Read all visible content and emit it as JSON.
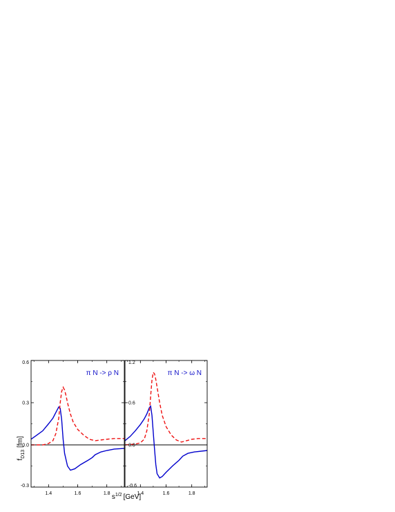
{
  "figure": {
    "ylabel_main": "f",
    "ylabel_sub": "D13",
    "ylabel_unit": "[fm]",
    "xlabel_main": "s",
    "xlabel_sup": "1/2",
    "xlabel_unit": "[GeV]"
  },
  "colors": {
    "solid": "#0000cc",
    "dashed": "#ee1111",
    "axis": "#000000",
    "zero_line": "#000000",
    "label_text": "#1010c8"
  },
  "chart_data": [
    {
      "type": "line",
      "panel": "left",
      "annotation": "π N -> ρ N",
      "xlim": [
        1.28,
        1.92
      ],
      "ylim": [
        -0.3,
        0.6
      ],
      "x_ticks": [
        1.4,
        1.6,
        1.8
      ],
      "x_tick_labels": [
        "1.4",
        "1.6",
        "1.8"
      ],
      "y_ticks": [
        -0.3,
        0.0,
        0.3,
        0.6
      ],
      "y_tick_labels": [
        "-0.3",
        "0.0",
        "0.3",
        "0.6"
      ],
      "zero_line": true,
      "grid": false,
      "series": [
        {
          "style": "solid",
          "x": [
            1.28,
            1.32,
            1.36,
            1.4,
            1.43,
            1.45,
            1.47,
            1.48,
            1.49,
            1.5,
            1.51,
            1.53,
            1.55,
            1.58,
            1.62,
            1.67,
            1.7,
            1.72,
            1.76,
            1.8,
            1.85,
            1.92
          ],
          "y": [
            0.04,
            0.07,
            0.1,
            0.15,
            0.19,
            0.23,
            0.27,
            0.26,
            0.18,
            0.04,
            -0.06,
            -0.15,
            -0.18,
            -0.17,
            -0.14,
            -0.11,
            -0.09,
            -0.07,
            -0.05,
            -0.04,
            -0.03,
            -0.025
          ]
        },
        {
          "style": "dashed",
          "x": [
            1.28,
            1.36,
            1.4,
            1.43,
            1.45,
            1.47,
            1.48,
            1.49,
            1.5,
            1.51,
            1.52,
            1.53,
            1.55,
            1.57,
            1.6,
            1.64,
            1.68,
            1.72,
            1.76,
            1.8,
            1.85,
            1.92
          ],
          "y": [
            0.0,
            0.0,
            0.01,
            0.03,
            0.08,
            0.19,
            0.3,
            0.38,
            0.41,
            0.39,
            0.35,
            0.3,
            0.22,
            0.16,
            0.11,
            0.07,
            0.04,
            0.03,
            0.035,
            0.04,
            0.045,
            0.045
          ]
        }
      ]
    },
    {
      "type": "line",
      "panel": "right",
      "annotation": "π N -> ω N",
      "xlim": [
        1.28,
        1.92
      ],
      "ylim": [
        -0.6,
        1.2
      ],
      "x_ticks": [
        1.4,
        1.6,
        1.8
      ],
      "x_tick_labels": [
        "1.4",
        "1.6",
        "1.8"
      ],
      "y_ticks": [
        -0.6,
        0.0,
        0.6,
        1.2
      ],
      "y_tick_labels": [
        "-0.6",
        "0.0",
        "0.6",
        "1.2"
      ],
      "zero_line": true,
      "grid": false,
      "series": [
        {
          "style": "solid",
          "x": [
            1.28,
            1.32,
            1.36,
            1.4,
            1.43,
            1.45,
            1.47,
            1.48,
            1.49,
            1.5,
            1.51,
            1.52,
            1.53,
            1.55,
            1.57,
            1.6,
            1.65,
            1.7,
            1.73,
            1.77,
            1.82,
            1.92
          ],
          "y": [
            0.06,
            0.12,
            0.2,
            0.29,
            0.37,
            0.44,
            0.53,
            0.55,
            0.42,
            0.18,
            -0.06,
            -0.28,
            -0.41,
            -0.47,
            -0.45,
            -0.39,
            -0.3,
            -0.22,
            -0.16,
            -0.12,
            -0.1,
            -0.08
          ]
        },
        {
          "style": "dashed",
          "x": [
            1.28,
            1.36,
            1.4,
            1.43,
            1.45,
            1.47,
            1.48,
            1.49,
            1.5,
            1.51,
            1.52,
            1.53,
            1.55,
            1.57,
            1.6,
            1.64,
            1.68,
            1.72,
            1.76,
            1.8,
            1.85,
            1.92
          ],
          "y": [
            0.0,
            0.01,
            0.03,
            0.08,
            0.2,
            0.45,
            0.7,
            0.92,
            1.03,
            1.01,
            0.93,
            0.82,
            0.6,
            0.42,
            0.26,
            0.14,
            0.07,
            0.04,
            0.06,
            0.08,
            0.09,
            0.09
          ]
        }
      ]
    }
  ]
}
